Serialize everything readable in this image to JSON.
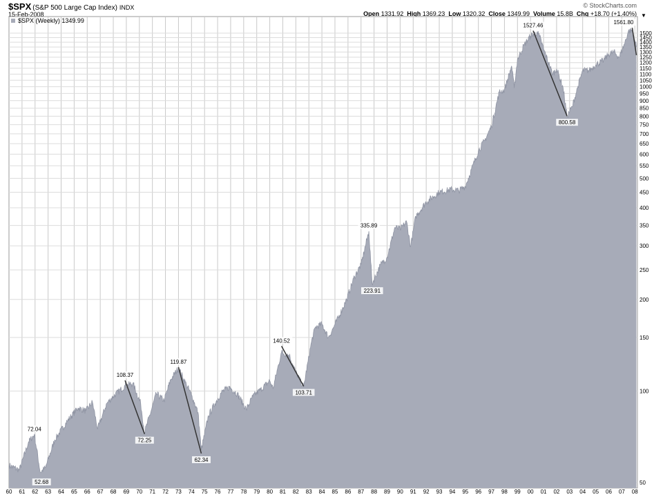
{
  "header": {
    "symbol": "$SPX",
    "name": "(S&P 500 Large Cap Index)",
    "exchange": "INDX",
    "date": "15-Feb-2008",
    "brand": "© StockCharts.com",
    "quote": [
      {
        "label": "Open",
        "value": "1331.92"
      },
      {
        "label": "High",
        "value": "1369.23"
      },
      {
        "label": "Low",
        "value": "1320.32"
      },
      {
        "label": "Close",
        "value": "1349.99"
      },
      {
        "label": "Volume",
        "value": "15.8B"
      },
      {
        "label": "Chg",
        "value": "+18.70 (+1.40%)"
      }
    ],
    "arrow": "▼"
  },
  "chart_data": {
    "type": "area",
    "legend": "$SPX (Weekly) 1349.99",
    "legend_placement": "top-left",
    "y_scale": "log",
    "ylim": [
      48,
      1700
    ],
    "xlim": [
      1960.0,
      2008.2
    ],
    "grid": true,
    "fill_color": "#a7abb8",
    "line_color": "#8f94a3",
    "x_tick_labels": [
      "60",
      "61",
      "62",
      "63",
      "64",
      "65",
      "66",
      "67",
      "68",
      "69",
      "70",
      "71",
      "72",
      "73",
      "74",
      "75",
      "76",
      "77",
      "78",
      "79",
      "80",
      "81",
      "82",
      "83",
      "84",
      "85",
      "86",
      "87",
      "88",
      "89",
      "90",
      "91",
      "92",
      "93",
      "94",
      "95",
      "96",
      "97",
      "98",
      "99",
      "00",
      "01",
      "02",
      "03",
      "04",
      "05",
      "06",
      "07",
      "08"
    ],
    "x_tick_years": [
      1960,
      1961,
      1962,
      1963,
      1964,
      1965,
      1966,
      1967,
      1968,
      1969,
      1970,
      1971,
      1972,
      1973,
      1974,
      1975,
      1976,
      1977,
      1978,
      1979,
      1980,
      1981,
      1982,
      1983,
      1984,
      1985,
      1986,
      1987,
      1988,
      1989,
      1990,
      1991,
      1992,
      1993,
      1994,
      1995,
      1996,
      1997,
      1998,
      1999,
      2000,
      2001,
      2002,
      2003,
      2004,
      2005,
      2006,
      2007,
      2008
    ],
    "y_ticks": [
      50,
      100,
      150,
      200,
      250,
      300,
      350,
      400,
      450,
      500,
      550,
      600,
      650,
      700,
      750,
      800,
      850,
      900,
      950,
      1000,
      1050,
      1100,
      1150,
      1200,
      1250,
      1300,
      1350,
      1400,
      1450,
      1500
    ],
    "y_tick_labels": [
      "50",
      "100",
      "150",
      "200",
      "250",
      "300",
      "350",
      "400",
      "450",
      "500",
      "550",
      "600",
      "650",
      "700",
      "750",
      "800",
      "850",
      "900",
      "950",
      "1000",
      "1050",
      "1100",
      "1150",
      "1200",
      "1250",
      "1300",
      "1350",
      "1400",
      "1450",
      "1500"
    ],
    "x": [
      1960.0,
      1960.8,
      1961.5,
      1961.95,
      1962.4,
      1962.8,
      1963.5,
      1964.5,
      1965.3,
      1965.9,
      1966.4,
      1966.8,
      1967.5,
      1968.0,
      1968.9,
      1969.5,
      1970.1,
      1970.4,
      1971.3,
      1971.9,
      1972.4,
      1973.0,
      1973.6,
      1974.0,
      1974.5,
      1974.75,
      1975.3,
      1975.8,
      1976.3,
      1976.9,
      1977.5,
      1978.2,
      1978.7,
      1979.3,
      1980.0,
      1980.25,
      1980.9,
      1981.5,
      1982.0,
      1982.6,
      1983.2,
      1983.5,
      1984.0,
      1984.5,
      1985.0,
      1985.9,
      1986.5,
      1987.0,
      1987.6,
      1987.85,
      1988.5,
      1989.0,
      1989.6,
      1990.0,
      1990.5,
      1990.8,
      1991.2,
      1992.0,
      1993.0,
      1994.0,
      1994.5,
      1995.0,
      1996.0,
      1996.5,
      1997.0,
      1997.6,
      1998.0,
      1998.55,
      1998.75,
      1999.0,
      1999.5,
      2000.0,
      2000.5,
      2000.7,
      2001.0,
      2001.7,
      2002.0,
      2002.5,
      2002.8,
      2003.2,
      2003.6,
      2004.0,
      2004.5,
      2005.0,
      2005.6,
      2006.0,
      2006.4,
      2006.8,
      2007.2,
      2007.5,
      2007.8,
      2008.0,
      2008.12
    ],
    "y": [
      57,
      55,
      68,
      72.04,
      54,
      56,
      69,
      80,
      88,
      86,
      92,
      75,
      91,
      96,
      104,
      106,
      91,
      73,
      98,
      93,
      109,
      119,
      105,
      97,
      85,
      64,
      83,
      91,
      99,
      103,
      98,
      87,
      96,
      101,
      108,
      102,
      134,
      131,
      115,
      103,
      145,
      162,
      166,
      150,
      165,
      200,
      238,
      260,
      335,
      225,
      260,
      275,
      345,
      340,
      360,
      298,
      375,
      418,
      450,
      460,
      456,
      470,
      615,
      668,
      740,
      960,
      975,
      1170,
      990,
      1230,
      1370,
      1469,
      1510,
      1460,
      1330,
      1100,
      1146,
      990,
      800,
      860,
      990,
      1130,
      1130,
      1180,
      1220,
      1280,
      1300,
      1250,
      1380,
      1520,
      1530,
      1420,
      1349.99
    ],
    "annotations": [
      {
        "label": "72.04",
        "x": 1961.95,
        "y": 72.04,
        "pos": "above"
      },
      {
        "label": "52.68",
        "x": 1962.5,
        "y": 52.68,
        "pos": "below"
      },
      {
        "label": "108.37",
        "x": 1968.9,
        "y": 108.37,
        "pos": "above"
      },
      {
        "label": "72.25",
        "x": 1970.4,
        "y": 72.25,
        "pos": "below"
      },
      {
        "label": "119.87",
        "x": 1973.0,
        "y": 119.87,
        "pos": "above"
      },
      {
        "label": "62.34",
        "x": 1974.75,
        "y": 62.34,
        "pos": "below"
      },
      {
        "label": "140.52",
        "x": 1980.9,
        "y": 140.52,
        "pos": "above"
      },
      {
        "label": "103.71",
        "x": 1982.6,
        "y": 103.71,
        "pos": "below"
      },
      {
        "label": "335.89",
        "x": 1987.6,
        "y": 335.89,
        "pos": "above"
      },
      {
        "label": "223.91",
        "x": 1987.85,
        "y": 223.91,
        "pos": "below"
      },
      {
        "label": "1527.46",
        "x": 2000.2,
        "y": 1527.46,
        "pos": "above"
      },
      {
        "label": "800.58",
        "x": 2002.8,
        "y": 800.58,
        "pos": "below"
      },
      {
        "label": "1561.80",
        "x": 2007.8,
        "y": 1561.8,
        "pos": "above"
      }
    ],
    "trend_lines": [
      {
        "from": [
          1968.9,
          108.37
        ],
        "to": [
          1970.4,
          72.25
        ]
      },
      {
        "from": [
          1973.0,
          119.87
        ],
        "to": [
          1974.75,
          62.34
        ]
      },
      {
        "from": [
          1980.9,
          140.52
        ],
        "to": [
          1982.6,
          103.71
        ]
      },
      {
        "from": [
          2000.2,
          1527.46
        ],
        "to": [
          2002.8,
          800.58
        ]
      },
      {
        "from": [
          2007.8,
          1561.8
        ],
        "to": [
          2008.12,
          1270
        ]
      }
    ]
  }
}
